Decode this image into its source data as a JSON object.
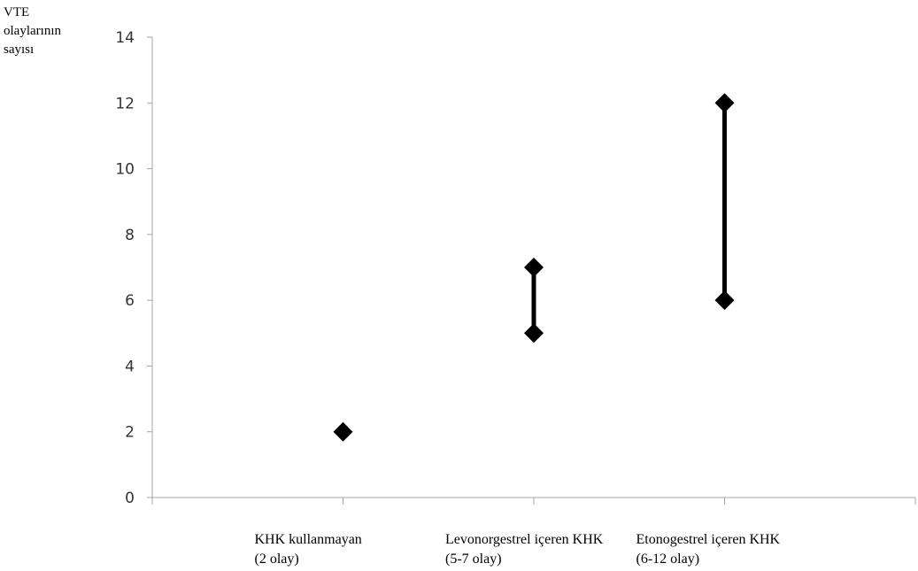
{
  "chart_data": {
    "type": "scatter",
    "ylabel_lines": [
      "VTE",
      "olaylarının",
      "sayısı"
    ],
    "ylim": [
      0,
      14
    ],
    "yticks": [
      0,
      2,
      4,
      6,
      8,
      10,
      12,
      14
    ],
    "categories": [
      {
        "line1": "KHK kullanmayan",
        "line2": "(2 olay)",
        "low": 2,
        "high": 2
      },
      {
        "line1": "Levonorgestrel içeren KHK",
        "line2": "(5-7 olay)",
        "low": 5,
        "high": 7
      },
      {
        "line1": "Etonogestrel içeren KHK",
        "line2": "(6-12 olay)",
        "low": 6,
        "high": 12
      }
    ],
    "grid": false,
    "legend": "none",
    "colors": {
      "marker": "#000000",
      "axis": "#a6a6a6",
      "tick_text": "#333333"
    }
  }
}
